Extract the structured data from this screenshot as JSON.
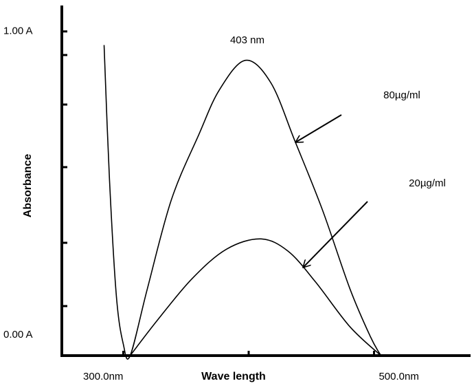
{
  "chart_data": {
    "type": "line",
    "xlabel": "Wave length",
    "ylabel": "Absorbance",
    "xlim": [
      251,
      577
    ],
    "ylim": [
      0,
      1.08
    ],
    "xticks": [
      {
        "value": 300,
        "label": "300.0nm"
      },
      {
        "value": 500,
        "label": "500.0nm"
      }
    ],
    "yticks": [
      {
        "value": 0,
        "label": "0.00 A"
      },
      {
        "value": 1,
        "label": "1.00 A"
      }
    ],
    "peak_label": "403 nm",
    "series": [
      {
        "name": "80µg/ml",
        "color": "#000000",
        "x": [
          284.7,
          289.0,
          294.5,
          300,
          305.5,
          319.2,
          338.4,
          360.3,
          376.7,
          397.5,
          417.8,
          437.0,
          458.9,
          480.8,
          497.3,
          505.5
        ],
        "values": [
          0.958,
          0.544,
          0.184,
          0.036,
          0,
          0.206,
          0.481,
          0.682,
          0.82,
          0.911,
          0.841,
          0.661,
          0.449,
          0.206,
          0.057,
          0
        ]
      },
      {
        "name": "20µg/ml",
        "color": "#000000",
        "x": [
          305.5,
          327.4,
          354.8,
          382.2,
          409.6,
          431.5,
          453.4,
          480.8,
          505.5
        ],
        "values": [
          0,
          0.11,
          0.237,
          0.328,
          0.36,
          0.322,
          0.227,
          0.089,
          0
        ]
      }
    ]
  }
}
